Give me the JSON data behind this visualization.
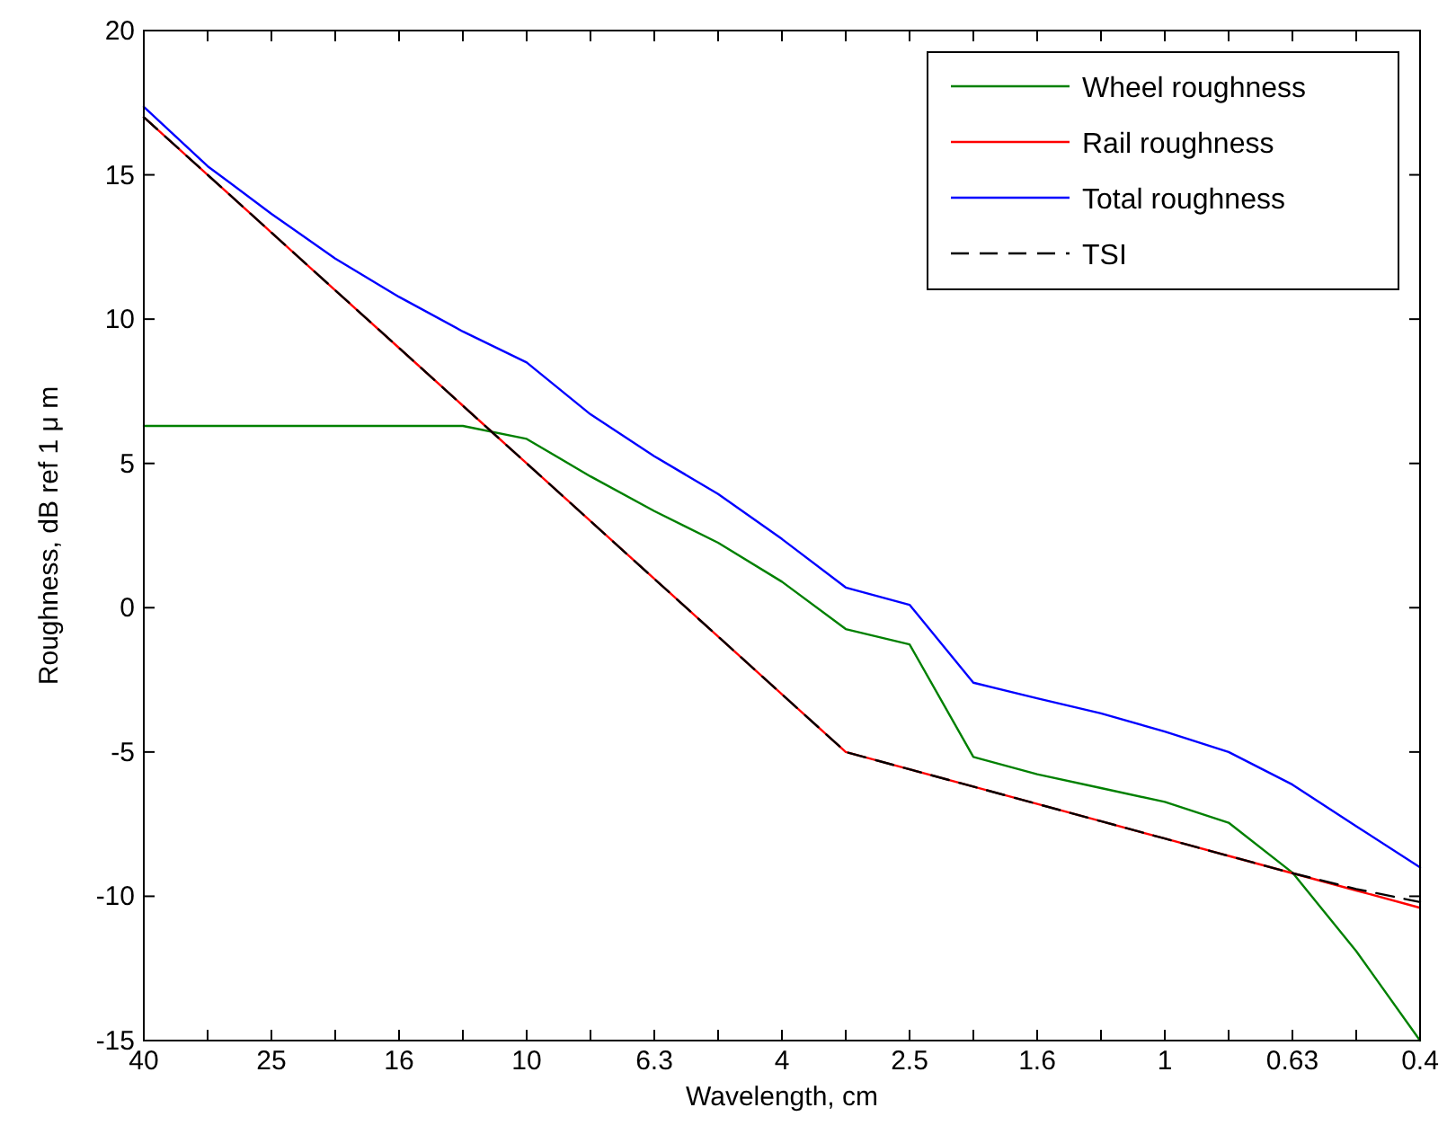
{
  "chart_data": {
    "type": "line",
    "xlabel": "Wavelength, cm",
    "ylabel": "Roughness, dB ref 1 μ m",
    "categories": [
      "40",
      null,
      "25",
      null,
      "16",
      null,
      "10",
      null,
      "6.3",
      null,
      "4",
      null,
      "2.5",
      null,
      "1.6",
      null,
      "1",
      null,
      "0.63",
      null,
      "0.4"
    ],
    "ylim": [
      -15,
      20
    ],
    "yticks": [
      -15,
      -10,
      -5,
      0,
      5,
      10,
      15,
      20
    ],
    "grid": false,
    "legend": "top right",
    "series": [
      {
        "name": "Wheel roughness",
        "color": "#008000",
        "values": [
          6.3,
          6.3,
          6.3,
          6.3,
          6.3,
          6.3,
          5.85,
          4.55,
          3.35,
          2.25,
          0.9,
          -0.74,
          -1.27,
          -5.17,
          -5.77,
          -6.25,
          -6.73,
          -7.45,
          -9.18,
          -11.9,
          -15
        ]
      },
      {
        "name": "Rail roughness",
        "color": "#ff0000",
        "values": [
          17,
          15,
          13,
          11,
          9,
          7,
          5,
          3,
          1,
          -1,
          -3,
          -5,
          -5.6,
          -6.2,
          -6.8,
          -7.4,
          -8,
          -8.6,
          -9.2,
          -9.8,
          -10.4
        ]
      },
      {
        "name": "Total roughness",
        "color": "#0000ff",
        "values": [
          17.36,
          15.3,
          13.65,
          12.1,
          10.77,
          9.57,
          8.5,
          6.7,
          5.25,
          3.94,
          2.38,
          0.7,
          0.1,
          -2.6,
          -3.14,
          -3.66,
          -4.29,
          -5,
          -6.13,
          -7.57,
          -9
        ]
      },
      {
        "name": "TSI",
        "color": "#000000",
        "line_style": "dashed",
        "values": [
          17,
          15,
          13,
          11,
          9,
          7,
          5,
          3,
          1,
          -1,
          -3,
          -5,
          -5.6,
          -6.2,
          -6.8,
          -7.4,
          -8,
          -8.6,
          -9.2,
          -9.75,
          -10.2
        ]
      }
    ]
  }
}
